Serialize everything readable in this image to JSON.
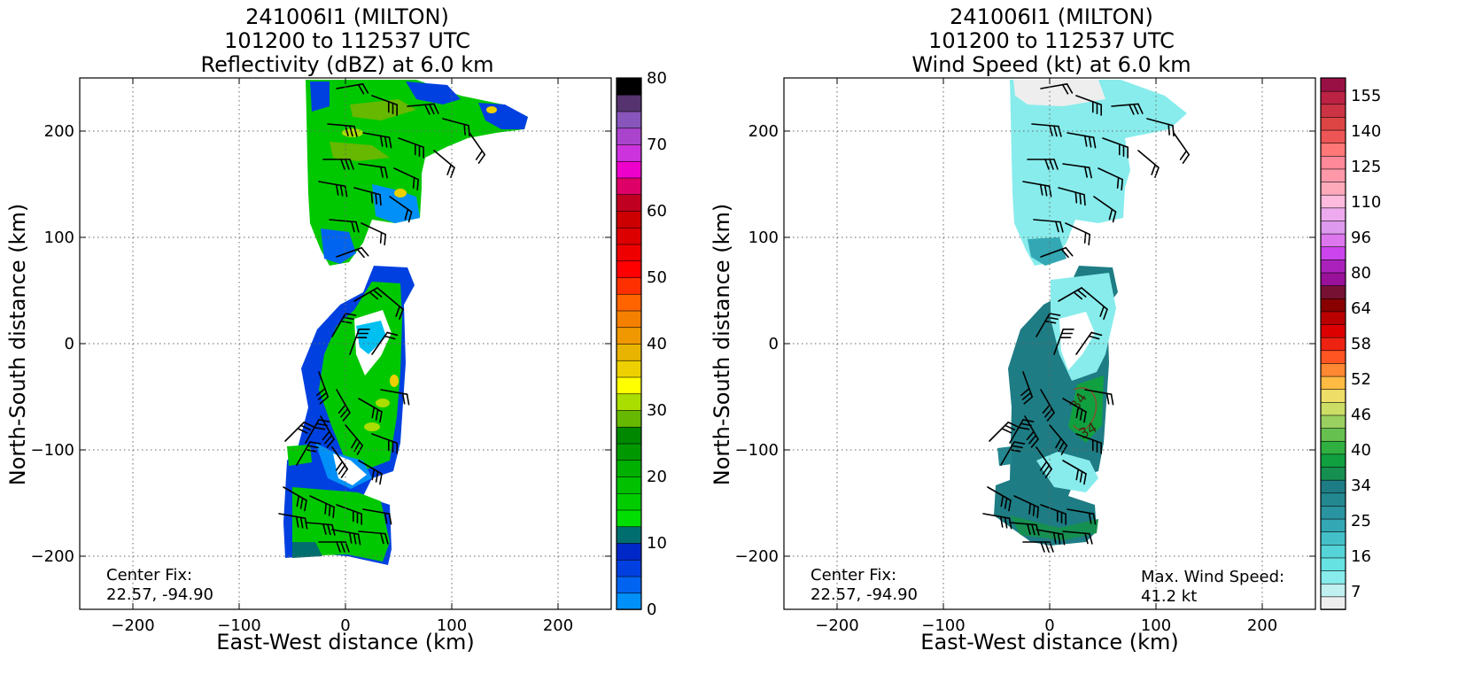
{
  "colors": {
    "reflectivity_scale": [
      "#00eeee",
      "#00d8f0",
      "#00c0f2",
      "#00a8f5",
      "#0090f8",
      "#0064f0",
      "#0040e0",
      "#0028c8",
      "#006e6e",
      "#00dd00",
      "#00cc00",
      "#00c000",
      "#00b000",
      "#009800",
      "#008800",
      "#66b800",
      "#aadd00",
      "#ffff00",
      "#eed000",
      "#e8b400",
      "#f09800",
      "#f58000",
      "#ff6400",
      "#ff3000",
      "#ff0000",
      "#ee0000",
      "#dd0000",
      "#cc0000",
      "#c00020",
      "#dd0066",
      "#ee00cc",
      "#cc33dd",
      "#aa44cc",
      "#8855bb",
      "#55336e",
      "#000000"
    ],
    "wind_scale": [
      "#eeeeee",
      "#c0f0f0",
      "#88ecec",
      "#66e2e2",
      "#55d4d8",
      "#44c0c8",
      "#33a8b4",
      "#2a95a0",
      "#238890",
      "#1e7c84",
      "#169050",
      "#10a040",
      "#30b040",
      "#66c050",
      "#99d060",
      "#ccdd66",
      "#eedd66",
      "#ffbb44",
      "#ff8833",
      "#ff5522",
      "#ee2211",
      "#dd0000",
      "#bb0000",
      "#880000",
      "#771133",
      "#991199",
      "#aa22bb",
      "#cc44ee",
      "#dd77ee",
      "#dd99ee",
      "#eeaaee",
      "#ffbbdd",
      "#ffaabb",
      "#ff99aa",
      "#ff8899",
      "#ff7777",
      "#ee5555",
      "#dd4444",
      "#cc3344",
      "#bb2244",
      "#991144"
    ]
  },
  "chart_data": [
    {
      "type": "heatmap",
      "title": [
        "241006I1 (MILTON)",
        "101200 to 112537 UTC",
        "Reflectivity (dBZ) at 6.0 km"
      ],
      "xlabel": "East-West distance (km)",
      "ylabel": "North-South distance (km)",
      "xlim": [
        -250,
        250
      ],
      "ylim": [
        -250,
        250
      ],
      "xticks": [
        -200,
        -100,
        0,
        100,
        200
      ],
      "yticks": [
        -200,
        -100,
        0,
        100,
        200
      ],
      "xtick_labels": [
        "−200",
        "−100",
        "0",
        "100",
        "200"
      ],
      "ytick_labels": [
        "−200",
        "−100",
        "0",
        "100",
        "200"
      ],
      "grid": true,
      "colorbar": {
        "min": 0,
        "max": 80,
        "step": 2.5,
        "ticks": [
          0,
          10,
          20,
          30,
          40,
          50,
          60,
          70,
          80
        ],
        "tick_labels": [
          "0",
          "10",
          "20",
          "30",
          "40",
          "50",
          "60",
          "70",
          "80"
        ]
      },
      "annotation_left": [
        "Center Fix:",
        "22.57, -94.90"
      ],
      "annotation_right": []
    },
    {
      "type": "heatmap",
      "title": [
        "241006I1 (MILTON)",
        "101200 to 112537 UTC",
        "Wind Speed (kt) at 6.0 km"
      ],
      "xlabel": "East-West distance (km)",
      "ylabel": "North-South distance (km)",
      "xlim": [
        -250,
        250
      ],
      "ylim": [
        -250,
        250
      ],
      "xticks": [
        -200,
        -100,
        0,
        100,
        200
      ],
      "yticks": [
        -200,
        -100,
        0,
        100,
        200
      ],
      "xtick_labels": [
        "−200",
        "−100",
        "0",
        "100",
        "200"
      ],
      "ytick_labels": [
        "−200",
        "−100",
        "0",
        "100",
        "200"
      ],
      "grid": true,
      "contour_label": "34",
      "colorbar": {
        "levels": 41,
        "tick_labels": [
          "7",
          "16",
          "25",
          "34",
          "40",
          "46",
          "52",
          "58",
          "64",
          "80",
          "96",
          "110",
          "125",
          "140",
          "155"
        ]
      },
      "annotation_left": [
        "Center Fix:",
        "22.57, -94.90"
      ],
      "annotation_right": [
        "Max. Wind Speed:",
        "41.2 kt"
      ]
    }
  ]
}
